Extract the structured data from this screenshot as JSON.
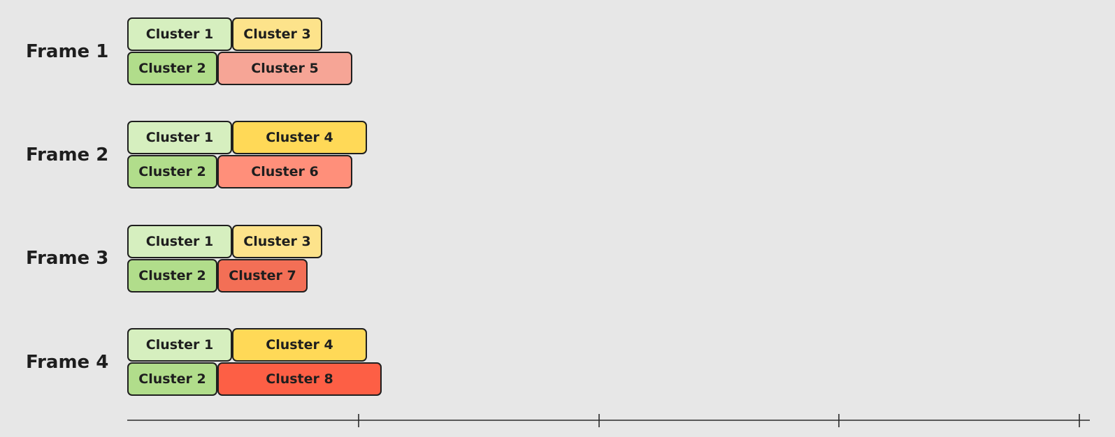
{
  "colors": {
    "background": "#e7e7e7",
    "cluster_1": "#d6efbf",
    "cluster_2": "#b1dd8b",
    "cluster_3": "#fde38b",
    "cluster_4": "#ffd957",
    "cluster_5": "#f6a596",
    "cluster_6": "#ff8f7a",
    "cluster_7": "#f36f56",
    "cluster_8": "#fd5f45",
    "border": "#1f1f1f",
    "text": "#1e1e1e"
  },
  "frames": [
    {
      "label": "Frame 1",
      "rows": [
        [
          {
            "label": "Cluster 1",
            "color": "#d6efbf"
          },
          {
            "label": "Cluster 3",
            "color": "#fde38b"
          }
        ],
        [
          {
            "label": "Cluster 2",
            "color": "#b1dd8b"
          },
          {
            "label": "Cluster 5",
            "color": "#f6a596"
          }
        ]
      ]
    },
    {
      "label": "Frame 2",
      "rows": [
        [
          {
            "label": "Cluster 1",
            "color": "#d6efbf"
          },
          {
            "label": "Cluster 4",
            "color": "#ffd957"
          }
        ],
        [
          {
            "label": "Cluster 2",
            "color": "#b1dd8b"
          },
          {
            "label": "Cluster 6",
            "color": "#ff8f7a"
          }
        ]
      ]
    },
    {
      "label": "Frame 3",
      "rows": [
        [
          {
            "label": "Cluster 1",
            "color": "#d6efbf"
          },
          {
            "label": "Cluster 3",
            "color": "#fde38b"
          }
        ],
        [
          {
            "label": "Cluster 2",
            "color": "#b1dd8b"
          },
          {
            "label": "Cluster 7",
            "color": "#f36f56"
          }
        ]
      ]
    },
    {
      "label": "Frame 4",
      "rows": [
        [
          {
            "label": "Cluster 1",
            "color": "#d6efbf"
          },
          {
            "label": "Cluster 4",
            "color": "#ffd957"
          }
        ],
        [
          {
            "label": "Cluster 2",
            "color": "#b1dd8b"
          },
          {
            "label": "Cluster 8",
            "color": "#fd5f45"
          }
        ]
      ]
    }
  ]
}
